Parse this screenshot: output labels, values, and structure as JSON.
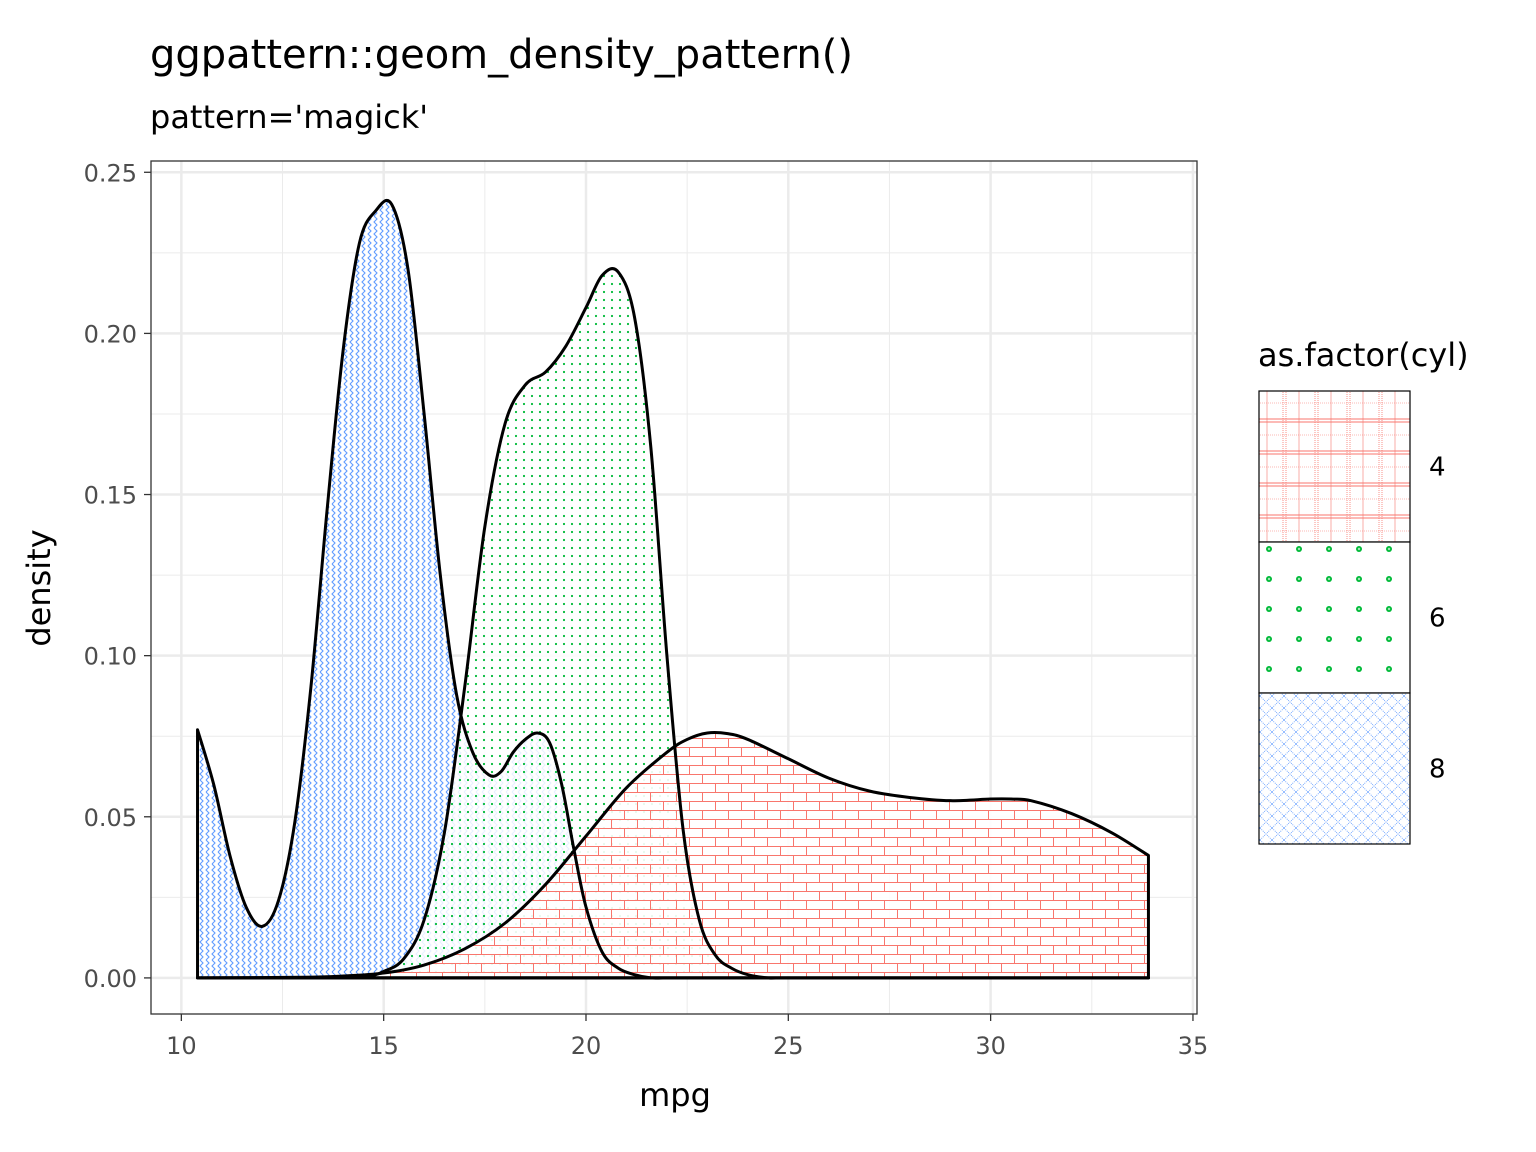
{
  "chart_data": {
    "type": "area",
    "title": "ggpattern::geom_density_pattern()",
    "subtitle": "pattern='magick'",
    "xlabel": "mpg",
    "ylabel": "density",
    "xlim": [
      9.25,
      35.1
    ],
    "ylim": [
      -0.0112,
      0.2535
    ],
    "x_ticks": [
      10,
      15,
      20,
      25,
      30,
      35
    ],
    "x_tick_labels": [
      "10",
      "15",
      "20",
      "25",
      "30",
      "35"
    ],
    "y_ticks": [
      0.0,
      0.05,
      0.1,
      0.15,
      0.2,
      0.25
    ],
    "y_tick_labels": [
      "0.00",
      "0.05",
      "0.10",
      "0.15",
      "0.20",
      "0.25"
    ],
    "grid": true,
    "legend": {
      "title": "as.factor(cyl)",
      "placement": "right",
      "entries": [
        {
          "label": "4",
          "pattern": "grid",
          "color": "#F8766D"
        },
        {
          "label": "6",
          "pattern": "dots",
          "color": "#00BA38"
        },
        {
          "label": "8",
          "pattern": "crosshatch",
          "color": "#619CFF"
        }
      ]
    },
    "series": [
      {
        "name": "8",
        "color": "#619CFF",
        "pattern": "zigzag",
        "x": [
          10.4,
          10.8,
          11.2,
          11.6,
          12.0,
          12.4,
          12.8,
          13.2,
          13.6,
          14.0,
          14.4,
          14.8,
          15.2,
          15.6,
          16.0,
          16.4,
          16.8,
          17.2,
          17.6,
          17.9,
          18.2,
          18.5,
          18.8,
          19.1,
          19.4,
          19.7,
          20.0,
          20.4,
          20.8,
          21.2,
          21.6,
          22.0,
          23.0,
          25.0,
          28.0,
          31.0,
          33.9
        ],
        "y": [
          0.077,
          0.06,
          0.038,
          0.022,
          0.016,
          0.024,
          0.048,
          0.09,
          0.145,
          0.195,
          0.228,
          0.238,
          0.24,
          0.22,
          0.175,
          0.125,
          0.088,
          0.07,
          0.063,
          0.064,
          0.07,
          0.074,
          0.076,
          0.073,
          0.06,
          0.04,
          0.022,
          0.008,
          0.003,
          0.001,
          0.0,
          0.0,
          0.0,
          0.0,
          0.0,
          0.0,
          0.0
        ]
      },
      {
        "name": "6",
        "color": "#00BA38",
        "pattern": "dots",
        "x": [
          10.4,
          13.0,
          14.5,
          15.0,
          15.5,
          16.0,
          16.5,
          17.0,
          17.5,
          18.0,
          18.5,
          19.0,
          19.5,
          20.0,
          20.4,
          20.8,
          21.2,
          21.6,
          22.0,
          22.4,
          22.8,
          23.2,
          23.6,
          24.0,
          24.5,
          25.0,
          28.0,
          33.9
        ],
        "y": [
          0.0,
          0.0,
          0.0005,
          0.002,
          0.006,
          0.018,
          0.045,
          0.09,
          0.14,
          0.172,
          0.184,
          0.188,
          0.196,
          0.208,
          0.218,
          0.219,
          0.205,
          0.165,
          0.1,
          0.046,
          0.018,
          0.007,
          0.003,
          0.001,
          0.0,
          0.0,
          0.0,
          0.0
        ]
      },
      {
        "name": "4",
        "color": "#F8766D",
        "pattern": "bricks",
        "x": [
          10.4,
          13.0,
          14.0,
          15.0,
          16.0,
          17.0,
          18.0,
          19.0,
          20.0,
          21.0,
          22.0,
          22.5,
          23.0,
          23.5,
          24.0,
          25.0,
          26.0,
          27.0,
          28.0,
          29.0,
          30.0,
          30.5,
          31.0,
          32.0,
          33.0,
          33.9
        ],
        "y": [
          0.0,
          0.0002,
          0.0006,
          0.0015,
          0.004,
          0.009,
          0.017,
          0.029,
          0.044,
          0.059,
          0.07,
          0.074,
          0.076,
          0.0758,
          0.074,
          0.068,
          0.062,
          0.058,
          0.056,
          0.055,
          0.0555,
          0.0555,
          0.055,
          0.051,
          0.045,
          0.038
        ]
      }
    ]
  }
}
